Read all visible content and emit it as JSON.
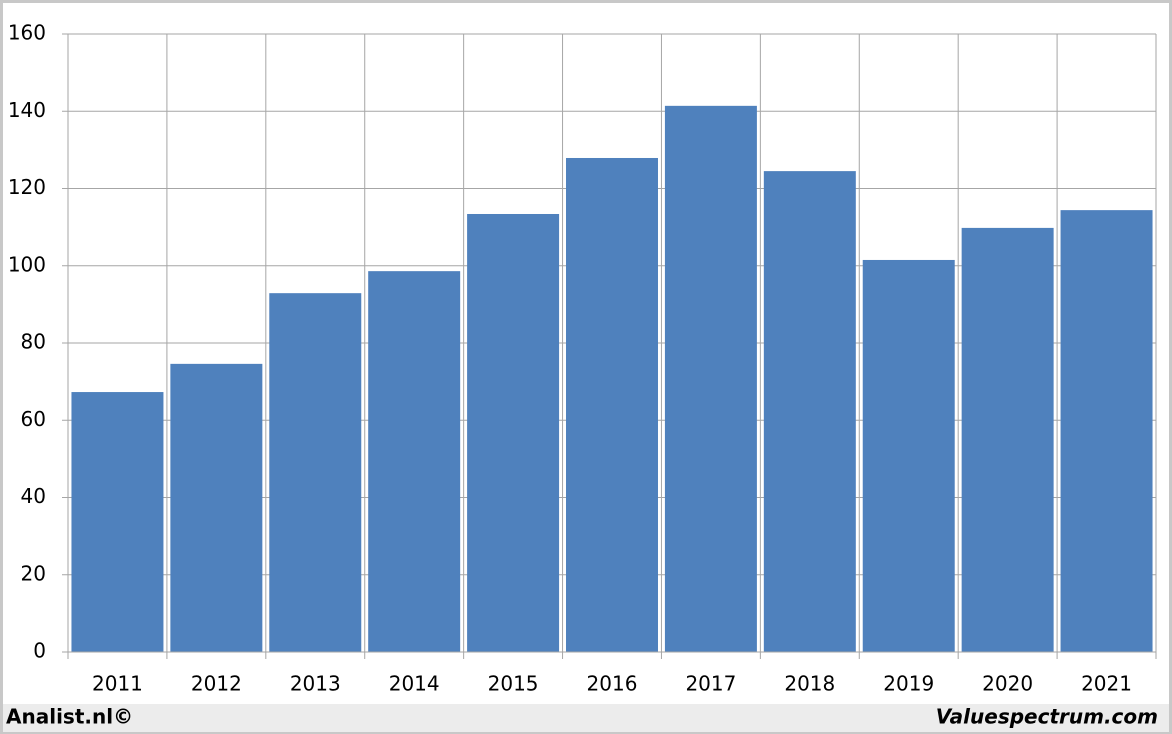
{
  "chart_data": {
    "type": "bar",
    "categories": [
      "2011",
      "2012",
      "2013",
      "2014",
      "2015",
      "2016",
      "2017",
      "2018",
      "2019",
      "2020",
      "2021"
    ],
    "values": [
      67.3,
      74.6,
      92.9,
      98.6,
      113.4,
      127.9,
      141.4,
      124.5,
      101.5,
      109.8,
      114.4
    ],
    "color": "#4f81bd",
    "ylim": [
      0,
      160
    ],
    "yticks": [
      0,
      20,
      40,
      60,
      80,
      100,
      120,
      140,
      160
    ],
    "grid": true,
    "footer_left": "Analist.nl©",
    "footer_right": "Valuespectrum.com"
  }
}
